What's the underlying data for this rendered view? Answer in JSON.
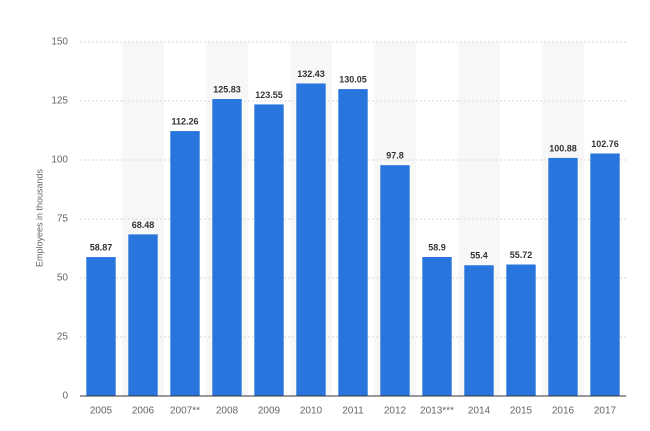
{
  "chart_data": {
    "type": "bar",
    "y_label": "Employees in thousands",
    "categories": [
      "2005",
      "2006",
      "2007**",
      "2008",
      "2009",
      "2010",
      "2011",
      "2012",
      "2013***",
      "2014",
      "2015",
      "2016",
      "2017"
    ],
    "values": [
      58.87,
      68.48,
      112.26,
      125.83,
      123.55,
      132.43,
      130.05,
      97.8,
      58.9,
      55.4,
      55.72,
      100.88,
      102.76
    ],
    "color": "#2876dd",
    "ylim": [
      0,
      150
    ],
    "yticks": [
      0,
      25,
      50,
      75,
      100,
      125,
      150
    ],
    "grid": true
  }
}
